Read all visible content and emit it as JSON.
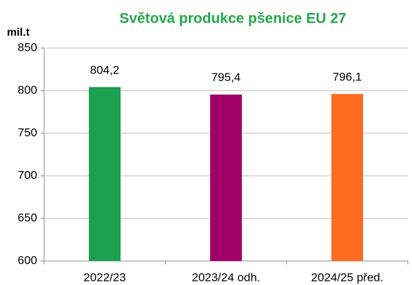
{
  "chart_data": {
    "type": "bar",
    "title": "Světová produkce pšenice  EU 27",
    "y_label": "mil.t",
    "categories": [
      "2022/23",
      "2023/24 odh.",
      "2024/25 před."
    ],
    "values": [
      804.2,
      795.4,
      796.1
    ],
    "value_labels": [
      "804,2",
      "795,4",
      "796,1"
    ],
    "colors": [
      "#1aa04e",
      "#a00068",
      "#ff6b21"
    ],
    "ylim": [
      600,
      850
    ],
    "yticks": [
      600,
      650,
      700,
      750,
      800,
      850
    ],
    "grid": true
  }
}
